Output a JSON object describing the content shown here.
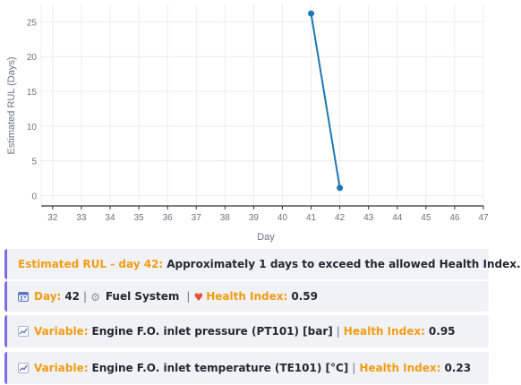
{
  "chart_data": {
    "type": "line",
    "title": "",
    "xlabel": "Day",
    "ylabel": "Estimated RUL (Days)",
    "xlim": [
      31.6,
      47
    ],
    "ylim": [
      -1.5,
      27.5
    ],
    "x_ticks": [
      32,
      33,
      34,
      35,
      36,
      37,
      38,
      39,
      40,
      41,
      42,
      43,
      44,
      45,
      46,
      47
    ],
    "y_ticks": [
      0,
      5,
      10,
      15,
      20,
      25
    ],
    "grid": true,
    "series": [
      {
        "x": [
          41,
          42
        ],
        "y": [
          26.2,
          1.1
        ],
        "color": "#1f77b4"
      }
    ]
  },
  "cards": {
    "estimate": {
      "label": "Estimated RUL - day 42:",
      "text": "Approximately 1 days to exceed the allowed Health Index."
    },
    "summary": {
      "day_label": "Day:",
      "day_value": "42",
      "system": "Fuel System",
      "hi_label": "Health Index:",
      "hi_value": "0.59",
      "sep": "|"
    },
    "variables": [
      {
        "label": "Variable:",
        "name": "Engine F.O. inlet pressure (PT101) [bar]",
        "hi_label": "Health Index:",
        "hi_value": "0.95"
      },
      {
        "label": "Variable:",
        "name": "Engine F.O. inlet temperature (TE101) [°C]",
        "hi_label": "Health Index:",
        "hi_value": "0.23"
      }
    ]
  },
  "colors": {
    "accent": "#f39c12",
    "card_border": "#7c6fe0",
    "line": "#1f77b4"
  }
}
